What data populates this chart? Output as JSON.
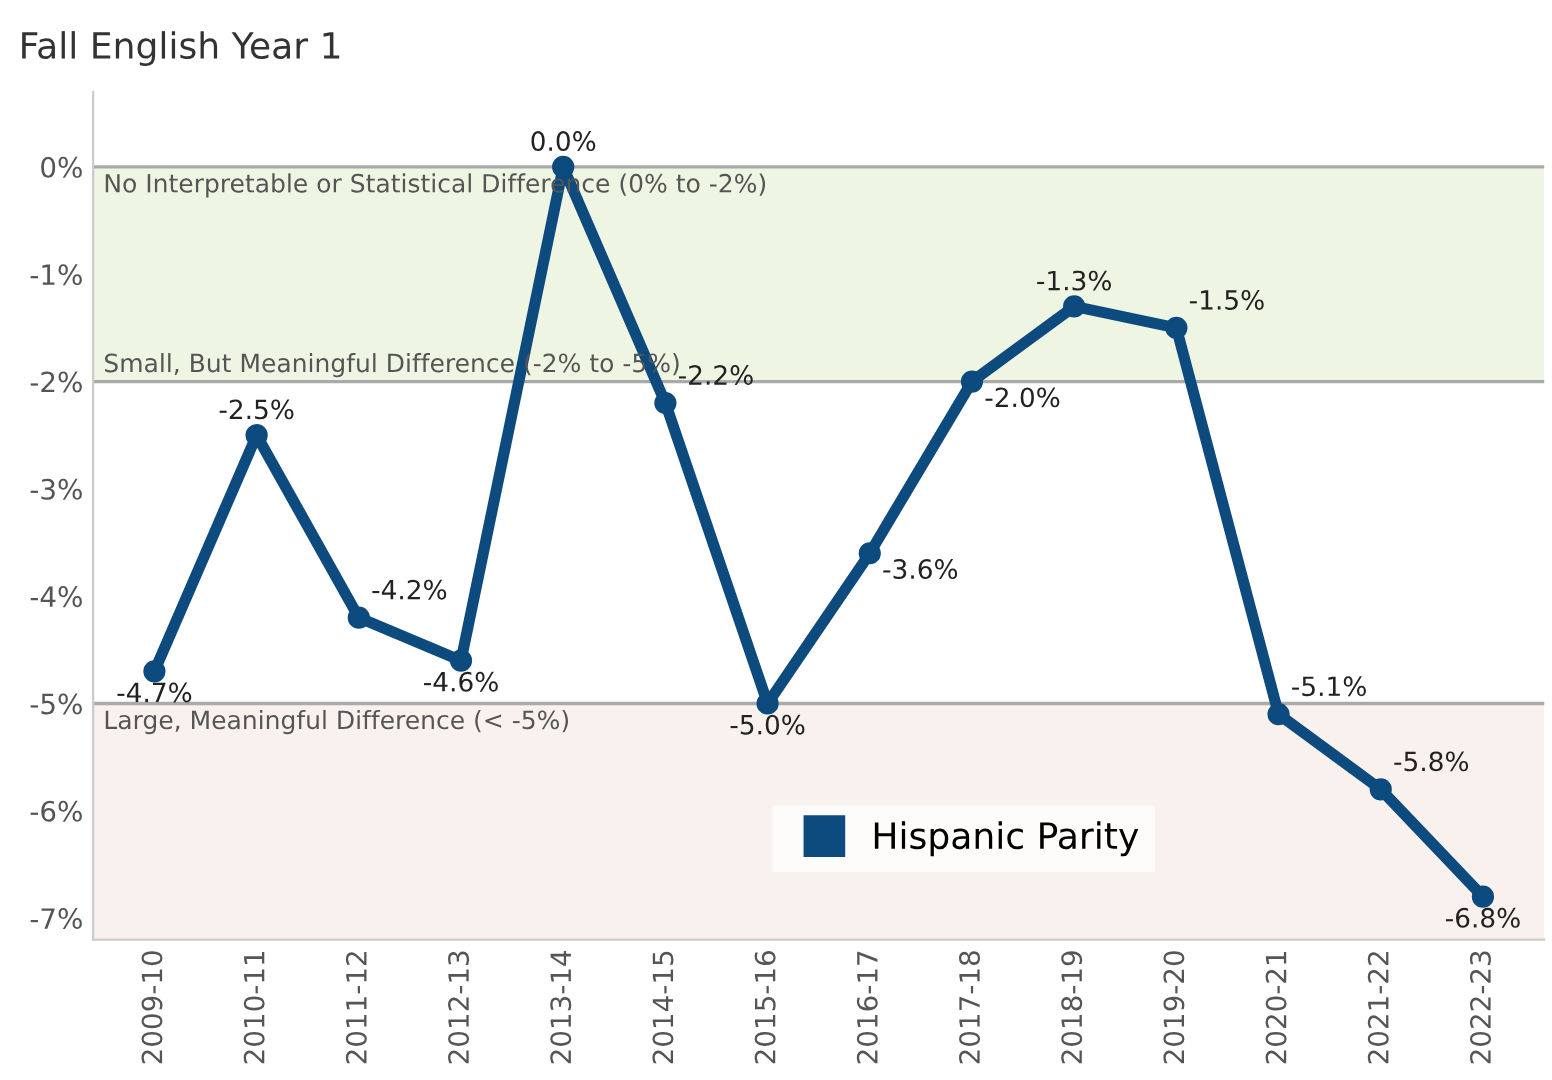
{
  "chart_data": {
    "type": "line",
    "title": "Fall English Year 1",
    "categories": [
      "2009-10",
      "2010-11",
      "2011-12",
      "2012-13",
      "2013-14",
      "2014-15",
      "2015-16",
      "2016-17",
      "2017-18",
      "2018-19",
      "2019-20",
      "2020-21",
      "2021-22",
      "2022-23"
    ],
    "series": [
      {
        "name": "Hispanic Parity",
        "color": "#0d4a7e",
        "values": [
          -4.7,
          -2.5,
          -4.2,
          -4.6,
          0.0,
          -2.2,
          -5.0,
          -3.6,
          -2.0,
          -1.3,
          -1.5,
          -5.1,
          -5.8,
          -6.8
        ],
        "value_labels": [
          "-4.7%",
          "-2.5%",
          "-4.2%",
          "-4.6%",
          "0.0%",
          "-2.2%",
          "-5.0%",
          "-3.6%",
          "-2.0%",
          "-1.3%",
          "-1.5%",
          "-5.1%",
          "-5.8%",
          "-6.8%"
        ]
      }
    ],
    "ylim": [
      -7.2,
      0.7
    ],
    "yticks": [
      {
        "value": 0,
        "label": "0%"
      },
      {
        "value": -1,
        "label": "-1%"
      },
      {
        "value": -2,
        "label": "-2%"
      },
      {
        "value": -3,
        "label": "-3%"
      },
      {
        "value": -4,
        "label": "-4%"
      },
      {
        "value": -5,
        "label": "-5%"
      },
      {
        "value": -6,
        "label": "-6%"
      },
      {
        "value": -7,
        "label": "-7%"
      }
    ],
    "ref_lines": [
      {
        "axis": "y",
        "value": 0,
        "label": "No Interpretable or Statistical Difference (0% to -2%)",
        "color": "#aaaaaa"
      },
      {
        "axis": "y",
        "value": -2,
        "label": "Small, But Meaningful Difference (-2% to -5%)",
        "color": "#aaaaaa"
      },
      {
        "axis": "y",
        "value": -5,
        "label": "Large, Meaningful Difference (< -5%)",
        "color": "#aaaaaa"
      }
    ],
    "bands": [
      {
        "axis": "y",
        "from": 0,
        "to": -2,
        "color": "#eff5e3"
      },
      {
        "axis": "y",
        "from": -5,
        "to": -7.2,
        "color": "#f8f1ee"
      }
    ],
    "marker": "circle",
    "line_style": "solid",
    "grid": false,
    "legend": "bottom"
  }
}
